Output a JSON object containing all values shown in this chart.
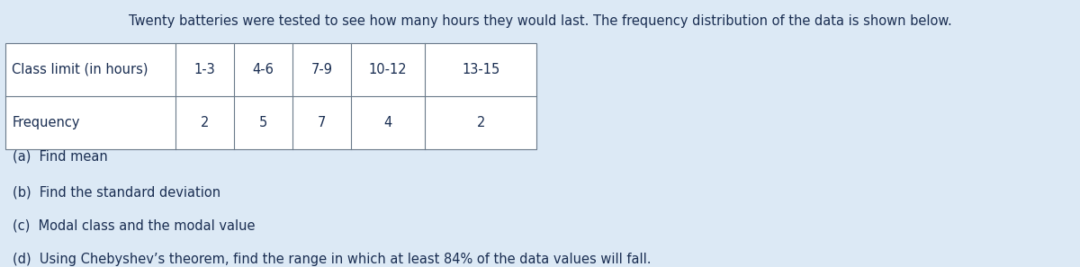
{
  "title": "Twenty batteries were tested to see how many hours they would last. The frequency distribution of the data is shown below.",
  "title_fontsize": 10.5,
  "background_color": "#dce9f5",
  "table_col_labels": [
    "Class limit (in hours)",
    "1-3",
    "4-6",
    "7-9",
    "10-12",
    "13-15"
  ],
  "table_row2": [
    "Frequency",
    "2",
    "5",
    "7",
    "4",
    "2"
  ],
  "questions": [
    "(a)  Find mean",
    "(b)  Find the standard deviation",
    "(c)  Modal class and the modal value",
    "(d)  Using Chebyshev’s theorem, find the range in which at least 84% of the data values will fall."
  ],
  "text_color": "#1a2e52",
  "table_line_color": "#6a7a8a",
  "table_bg_color": "#f0f6fc",
  "font_size_table": 10.5,
  "font_size_questions": 10.5,
  "fig_width": 12.0,
  "fig_height": 2.97,
  "dpi": 100
}
